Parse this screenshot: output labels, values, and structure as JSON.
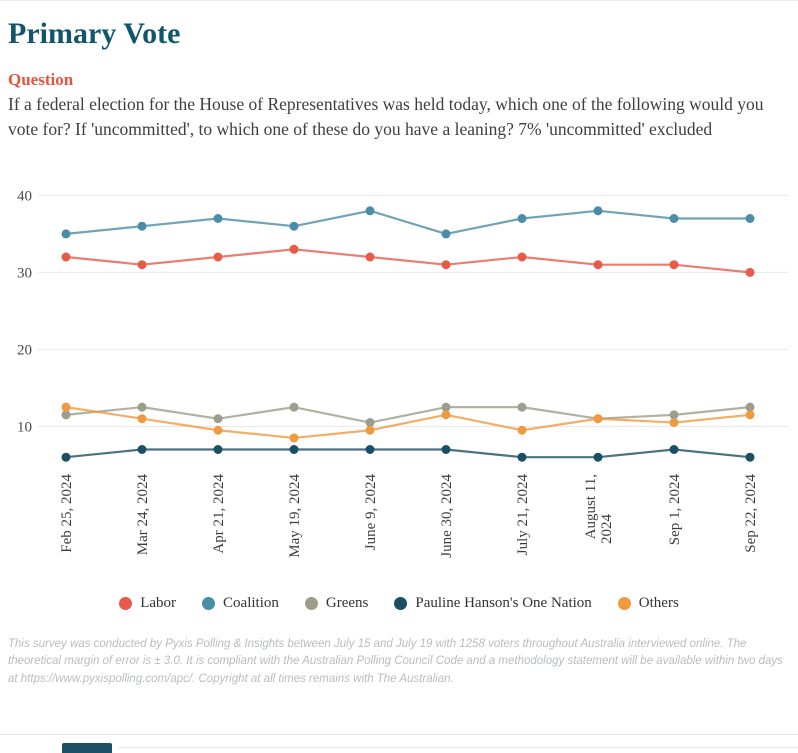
{
  "page": {
    "title": "Primary Vote",
    "question_label": "Question",
    "question_text": "If a federal election for the House of Representatives was held today, which one of the following would you vote for? If 'uncommitted', to which one of these do you have a leaning? 7% 'uncommitted' excluded",
    "footer": "This survey was conducted by Pyxis Polling & Insights between July 15 and July 19 with 1258 voters throughout Australia interviewed online. The theoretical margin of error is ± 3.0. It is compliant with the Australian Polling Council Code and a methodology statement will be available within two days at https://www.pyxispolling.com/apc/. Copyright at all times remains with The Australian."
  },
  "colors": {
    "title": "#12566c",
    "question": "#e4563c",
    "gridline": "#e7e7e7",
    "partial_bar": "#1b4f63"
  },
  "chart_data": {
    "type": "line",
    "title": "Primary Vote",
    "x": [
      "Feb 25, 2024",
      "Mar 24, 2024",
      "Apr 21, 2024",
      "May 19, 2024",
      "June 9, 2024",
      "June 30, 2024",
      "July 21, 2024",
      "August 11, 2024",
      "Sep 1, 2024",
      "Sep 22, 2024"
    ],
    "series": [
      {
        "name": "Labor",
        "color": "#e85b4b",
        "values": [
          32,
          31,
          32,
          33,
          32,
          31,
          32,
          31,
          31,
          30
        ]
      },
      {
        "name": "Coalition",
        "color": "#4b8da6",
        "values": [
          35,
          36,
          37,
          36,
          38,
          35,
          37,
          38,
          37,
          37
        ]
      },
      {
        "name": "Greens",
        "color": "#9d9d8b",
        "values": [
          11.5,
          12.5,
          11,
          12.5,
          10.5,
          12.5,
          12.5,
          11,
          11.5,
          12.5
        ]
      },
      {
        "name": "Pauline Hanson's One Nation",
        "color": "#1b4f63",
        "values": [
          6,
          7,
          7,
          7,
          7,
          7,
          6,
          6,
          7,
          6
        ]
      },
      {
        "name": "Others",
        "color": "#f09a3f",
        "values": [
          12.5,
          11,
          9.5,
          8.5,
          9.5,
          11.5,
          9.5,
          11,
          10.5,
          11.5
        ]
      }
    ],
    "xlabel": "",
    "ylabel": "",
    "ylim": [
      0,
      42
    ],
    "yticks": [
      40,
      30,
      20,
      10
    ],
    "grid": true,
    "legend_position": "bottom"
  }
}
